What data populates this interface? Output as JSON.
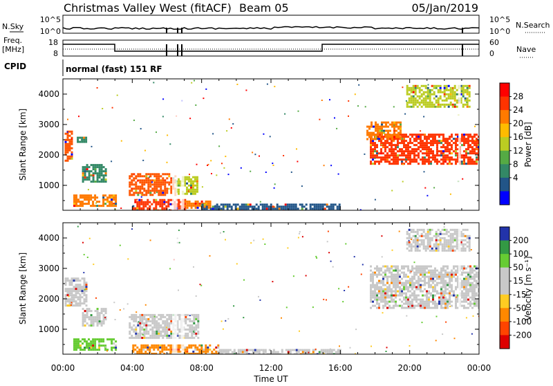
{
  "header": {
    "title": "Christmas Valley West (fitACF)",
    "beam": "Beam 05",
    "date": "05/Jan/2019"
  },
  "strip_labels": {
    "nsky": "N.Sky",
    "nsky_ticks": [
      "10^5",
      "10^0"
    ],
    "nsearch": "N.Search",
    "nsearch_ticks": [
      "10^5",
      "10^0"
    ],
    "freq_line1": "Freq.",
    "freq_line2": "[MHz]",
    "freq_ticks": [
      "18",
      "8"
    ],
    "nave": "Nave",
    "nave_ticks": [
      "60",
      "0"
    ],
    "cpid": "CPID",
    "cpid_text": "normal (fast) 151 RF"
  },
  "chart_data": [
    {
      "type": "heatmap",
      "panel": "power",
      "title": "",
      "ylabel": "Slant Range [km]",
      "xlabel": "Time UT",
      "x_ticks": [
        "00:00",
        "04:00",
        "08:00",
        "12:00",
        "16:00",
        "20:00",
        "00:00"
      ],
      "y_ticks": [
        "1000",
        "2000",
        "3000",
        "4000"
      ],
      "ylim": [
        180,
        4500
      ],
      "xlim_hours": [
        0,
        24
      ],
      "colorbar": {
        "label": "Power [dB]",
        "ticks": [
          "28",
          "24",
          "20",
          "16",
          "12",
          "8",
          "4"
        ],
        "colors": [
          "#ff0000",
          "#ff3300",
          "#ff7a00",
          "#ffbb00",
          "#bbcc22",
          "#55aa44",
          "#338866",
          "#225588",
          "#0000ff"
        ]
      },
      "regions": [
        {
          "t0": 0.1,
          "t1": 0.5,
          "r0": 1800,
          "r1": 2800,
          "color": "#ff5500"
        },
        {
          "t0": 0.8,
          "t1": 1.3,
          "r0": 2400,
          "r1": 2600,
          "color": "#338866"
        },
        {
          "t0": 1.1,
          "t1": 2.5,
          "r0": 1100,
          "r1": 1700,
          "color": "#338866"
        },
        {
          "t0": 0.6,
          "t1": 3.0,
          "r0": 300,
          "r1": 700,
          "color": "#ff7a00"
        },
        {
          "t0": 3.8,
          "t1": 6.5,
          "r0": 700,
          "r1": 1400,
          "color": "#ff5500"
        },
        {
          "t0": 6.5,
          "t1": 7.8,
          "r0": 700,
          "r1": 1300,
          "color": "#bbcc22"
        },
        {
          "t0": 4.0,
          "t1": 7.0,
          "r0": 200,
          "r1": 550,
          "color": "#ff3300"
        },
        {
          "t0": 7.0,
          "t1": 8.5,
          "r0": 250,
          "r1": 500,
          "color": "#ff7a00"
        },
        {
          "t0": 8.0,
          "t1": 16.0,
          "r0": 180,
          "r1": 400,
          "color": "#225588"
        },
        {
          "t0": 17.7,
          "t1": 24.0,
          "r0": 1700,
          "r1": 2700,
          "color": "#ff3300"
        },
        {
          "t0": 17.5,
          "t1": 19.5,
          "r0": 2500,
          "r1": 3100,
          "color": "#ff7a00"
        },
        {
          "t0": 19.8,
          "t1": 23.5,
          "r0": 3600,
          "r1": 4300,
          "color": "#bbcc22"
        }
      ]
    },
    {
      "type": "heatmap",
      "panel": "velocity",
      "title": "",
      "ylabel": "Slant Range [km]",
      "xlabel": "Time UT",
      "x_ticks": [
        "00:00",
        "04:00",
        "08:00",
        "12:00",
        "16:00",
        "20:00",
        "00:00"
      ],
      "y_ticks": [
        "1000",
        "2000",
        "3000",
        "4000"
      ],
      "ylim": [
        180,
        4500
      ],
      "xlim_hours": [
        0,
        24
      ],
      "colorbar": {
        "label": "Velocity [m s⁻¹]",
        "ticks": [
          "200",
          "100",
          "50",
          "15",
          "-15",
          "-50",
          "-100",
          "-200"
        ],
        "colors": [
          "#2233aa",
          "#339944",
          "#66cc33",
          "#c8c8c8",
          "#c8c8c8",
          "#ffcc22",
          "#ff8800",
          "#ff4400",
          "#dd0000"
        ]
      },
      "regions": [
        {
          "t0": 0.1,
          "t1": 1.3,
          "r0": 1800,
          "r1": 2700,
          "color": "#c8c8c8"
        },
        {
          "t0": 1.1,
          "t1": 2.5,
          "r0": 1100,
          "r1": 1700,
          "color": "#c8c8c8"
        },
        {
          "t0": 0.6,
          "t1": 3.0,
          "r0": 300,
          "r1": 700,
          "color": "#66cc33"
        },
        {
          "t0": 3.8,
          "t1": 7.8,
          "r0": 700,
          "r1": 1500,
          "color": "#c8c8c8"
        },
        {
          "t0": 4.0,
          "t1": 9.0,
          "r0": 200,
          "r1": 500,
          "color": "#ff8800"
        },
        {
          "t0": 9.0,
          "t1": 16.0,
          "r0": 180,
          "r1": 350,
          "color": "#c8c8c8"
        },
        {
          "t0": 17.7,
          "t1": 24.0,
          "r0": 1700,
          "r1": 3100,
          "color": "#c8c8c8"
        },
        {
          "t0": 19.8,
          "t1": 23.5,
          "r0": 3600,
          "r1": 4300,
          "color": "#c8c8c8"
        }
      ]
    }
  ]
}
